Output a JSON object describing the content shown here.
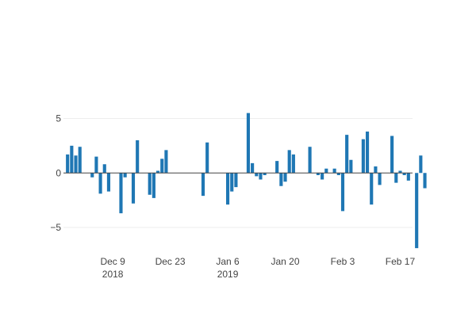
{
  "chart_data": {
    "type": "bar",
    "bar_color": "#1f77b4",
    "grid": true,
    "grid_color": "#eeeeee",
    "zero_line_color": "#444444",
    "ylim": [
      -7.4,
      8.6
    ],
    "xlim": [
      "2018-11-27",
      "2019-02-20"
    ],
    "y_ticks": [
      {
        "value": 5,
        "label": "5"
      },
      {
        "value": 0,
        "label": "0"
      },
      {
        "value": -5,
        "label": "−5"
      }
    ],
    "x_ticks": [
      {
        "date": "2018-12-09",
        "label": "Dec 9",
        "sublabel": "2018"
      },
      {
        "date": "2018-12-23",
        "label": "Dec 23",
        "sublabel": ""
      },
      {
        "date": "2019-01-06",
        "label": "Jan 6",
        "sublabel": "2019"
      },
      {
        "date": "2019-01-20",
        "label": "Jan 20",
        "sublabel": ""
      },
      {
        "date": "2019-02-03",
        "label": "Feb 3",
        "sublabel": ""
      },
      {
        "date": "2019-02-17",
        "label": "Feb 17",
        "sublabel": ""
      }
    ],
    "points": [
      {
        "x": "2018-11-28",
        "y": 1.7
      },
      {
        "x": "2018-11-29",
        "y": 2.5
      },
      {
        "x": "2018-11-30",
        "y": 1.6
      },
      {
        "x": "2018-12-01",
        "y": 2.4
      },
      {
        "x": "2018-12-04",
        "y": -0.4
      },
      {
        "x": "2018-12-05",
        "y": 1.5
      },
      {
        "x": "2018-12-06",
        "y": -1.9
      },
      {
        "x": "2018-12-07",
        "y": 0.8
      },
      {
        "x": "2018-12-08",
        "y": -1.7
      },
      {
        "x": "2018-12-11",
        "y": -3.7
      },
      {
        "x": "2018-12-12",
        "y": -0.4
      },
      {
        "x": "2018-12-14",
        "y": -2.8
      },
      {
        "x": "2018-12-15",
        "y": 3.0
      },
      {
        "x": "2018-12-18",
        "y": -2.0
      },
      {
        "x": "2018-12-19",
        "y": -2.3
      },
      {
        "x": "2018-12-20",
        "y": 0.2
      },
      {
        "x": "2018-12-21",
        "y": 1.3
      },
      {
        "x": "2018-12-22",
        "y": 2.1
      },
      {
        "x": "2018-12-31",
        "y": -2.1
      },
      {
        "x": "2019-01-01",
        "y": 2.8
      },
      {
        "x": "2019-01-06",
        "y": -2.9
      },
      {
        "x": "2019-01-07",
        "y": -1.7
      },
      {
        "x": "2019-01-08",
        "y": -1.3
      },
      {
        "x": "2019-01-11",
        "y": 5.5
      },
      {
        "x": "2019-01-12",
        "y": 0.9
      },
      {
        "x": "2019-01-13",
        "y": -0.3
      },
      {
        "x": "2019-01-14",
        "y": -0.6
      },
      {
        "x": "2019-01-15",
        "y": -0.2
      },
      {
        "x": "2019-01-18",
        "y": 1.1
      },
      {
        "x": "2019-01-19",
        "y": -1.2
      },
      {
        "x": "2019-01-20",
        "y": -0.8
      },
      {
        "x": "2019-01-21",
        "y": 2.1
      },
      {
        "x": "2019-01-22",
        "y": 1.7
      },
      {
        "x": "2019-01-26",
        "y": 2.4
      },
      {
        "x": "2019-01-28",
        "y": -0.2
      },
      {
        "x": "2019-01-29",
        "y": -0.6
      },
      {
        "x": "2019-01-30",
        "y": 0.4
      },
      {
        "x": "2019-02-01",
        "y": 0.4
      },
      {
        "x": "2019-02-02",
        "y": -0.2
      },
      {
        "x": "2019-02-03",
        "y": -3.5
      },
      {
        "x": "2019-02-04",
        "y": 3.5
      },
      {
        "x": "2019-02-05",
        "y": 1.2
      },
      {
        "x": "2019-02-08",
        "y": 3.1
      },
      {
        "x": "2019-02-09",
        "y": 3.8
      },
      {
        "x": "2019-02-10",
        "y": -2.9
      },
      {
        "x": "2019-02-11",
        "y": 0.6
      },
      {
        "x": "2019-02-12",
        "y": -1.1
      },
      {
        "x": "2019-02-15",
        "y": 3.4
      },
      {
        "x": "2019-02-16",
        "y": -0.9
      },
      {
        "x": "2019-02-17",
        "y": 0.2
      },
      {
        "x": "2019-02-18",
        "y": -0.2
      },
      {
        "x": "2019-02-19",
        "y": -0.7
      },
      {
        "x": "2019-02-21",
        "y": -6.9
      },
      {
        "x": "2019-02-22",
        "y": 1.6
      },
      {
        "x": "2019-02-23",
        "y": -1.4
      }
    ]
  }
}
